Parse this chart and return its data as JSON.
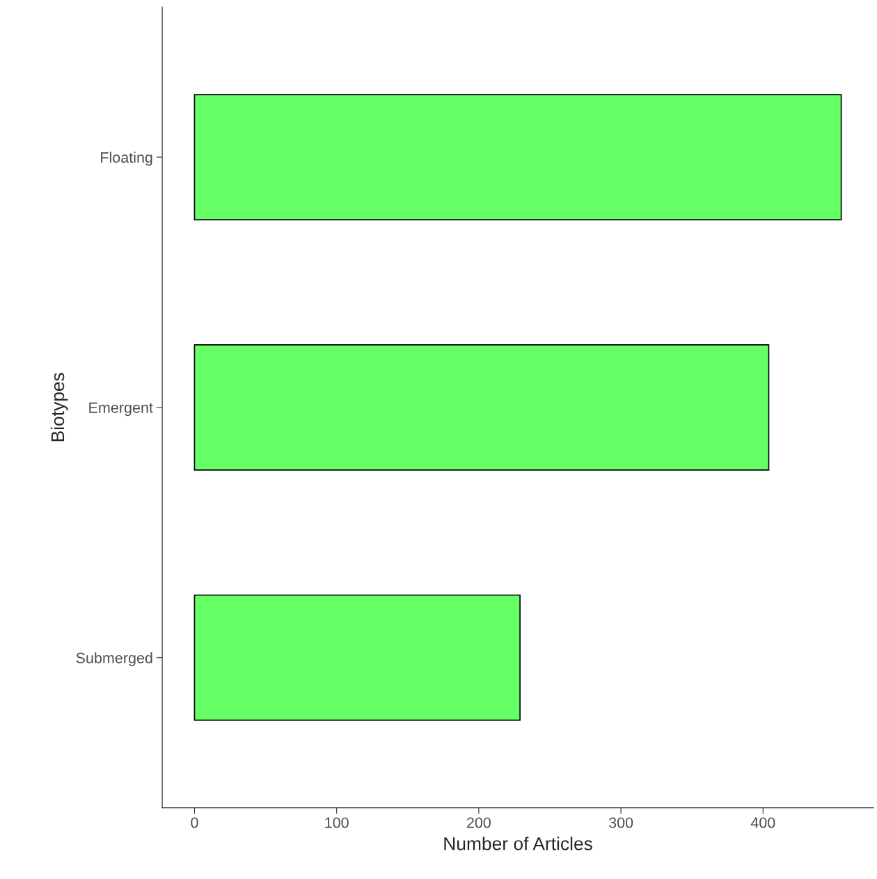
{
  "chart_data": {
    "type": "bar",
    "orientation": "horizontal",
    "xlabel": "Number of Articles",
    "ylabel": "Biotypes",
    "categories": [
      "Floating",
      "Emergent",
      "Submerged"
    ],
    "values": [
      455,
      404,
      229
    ],
    "color": "#66ff66",
    "xlim": [
      -22.7,
      477.7
    ],
    "xticks": [
      0,
      100,
      200,
      300,
      400
    ],
    "grid": false
  }
}
